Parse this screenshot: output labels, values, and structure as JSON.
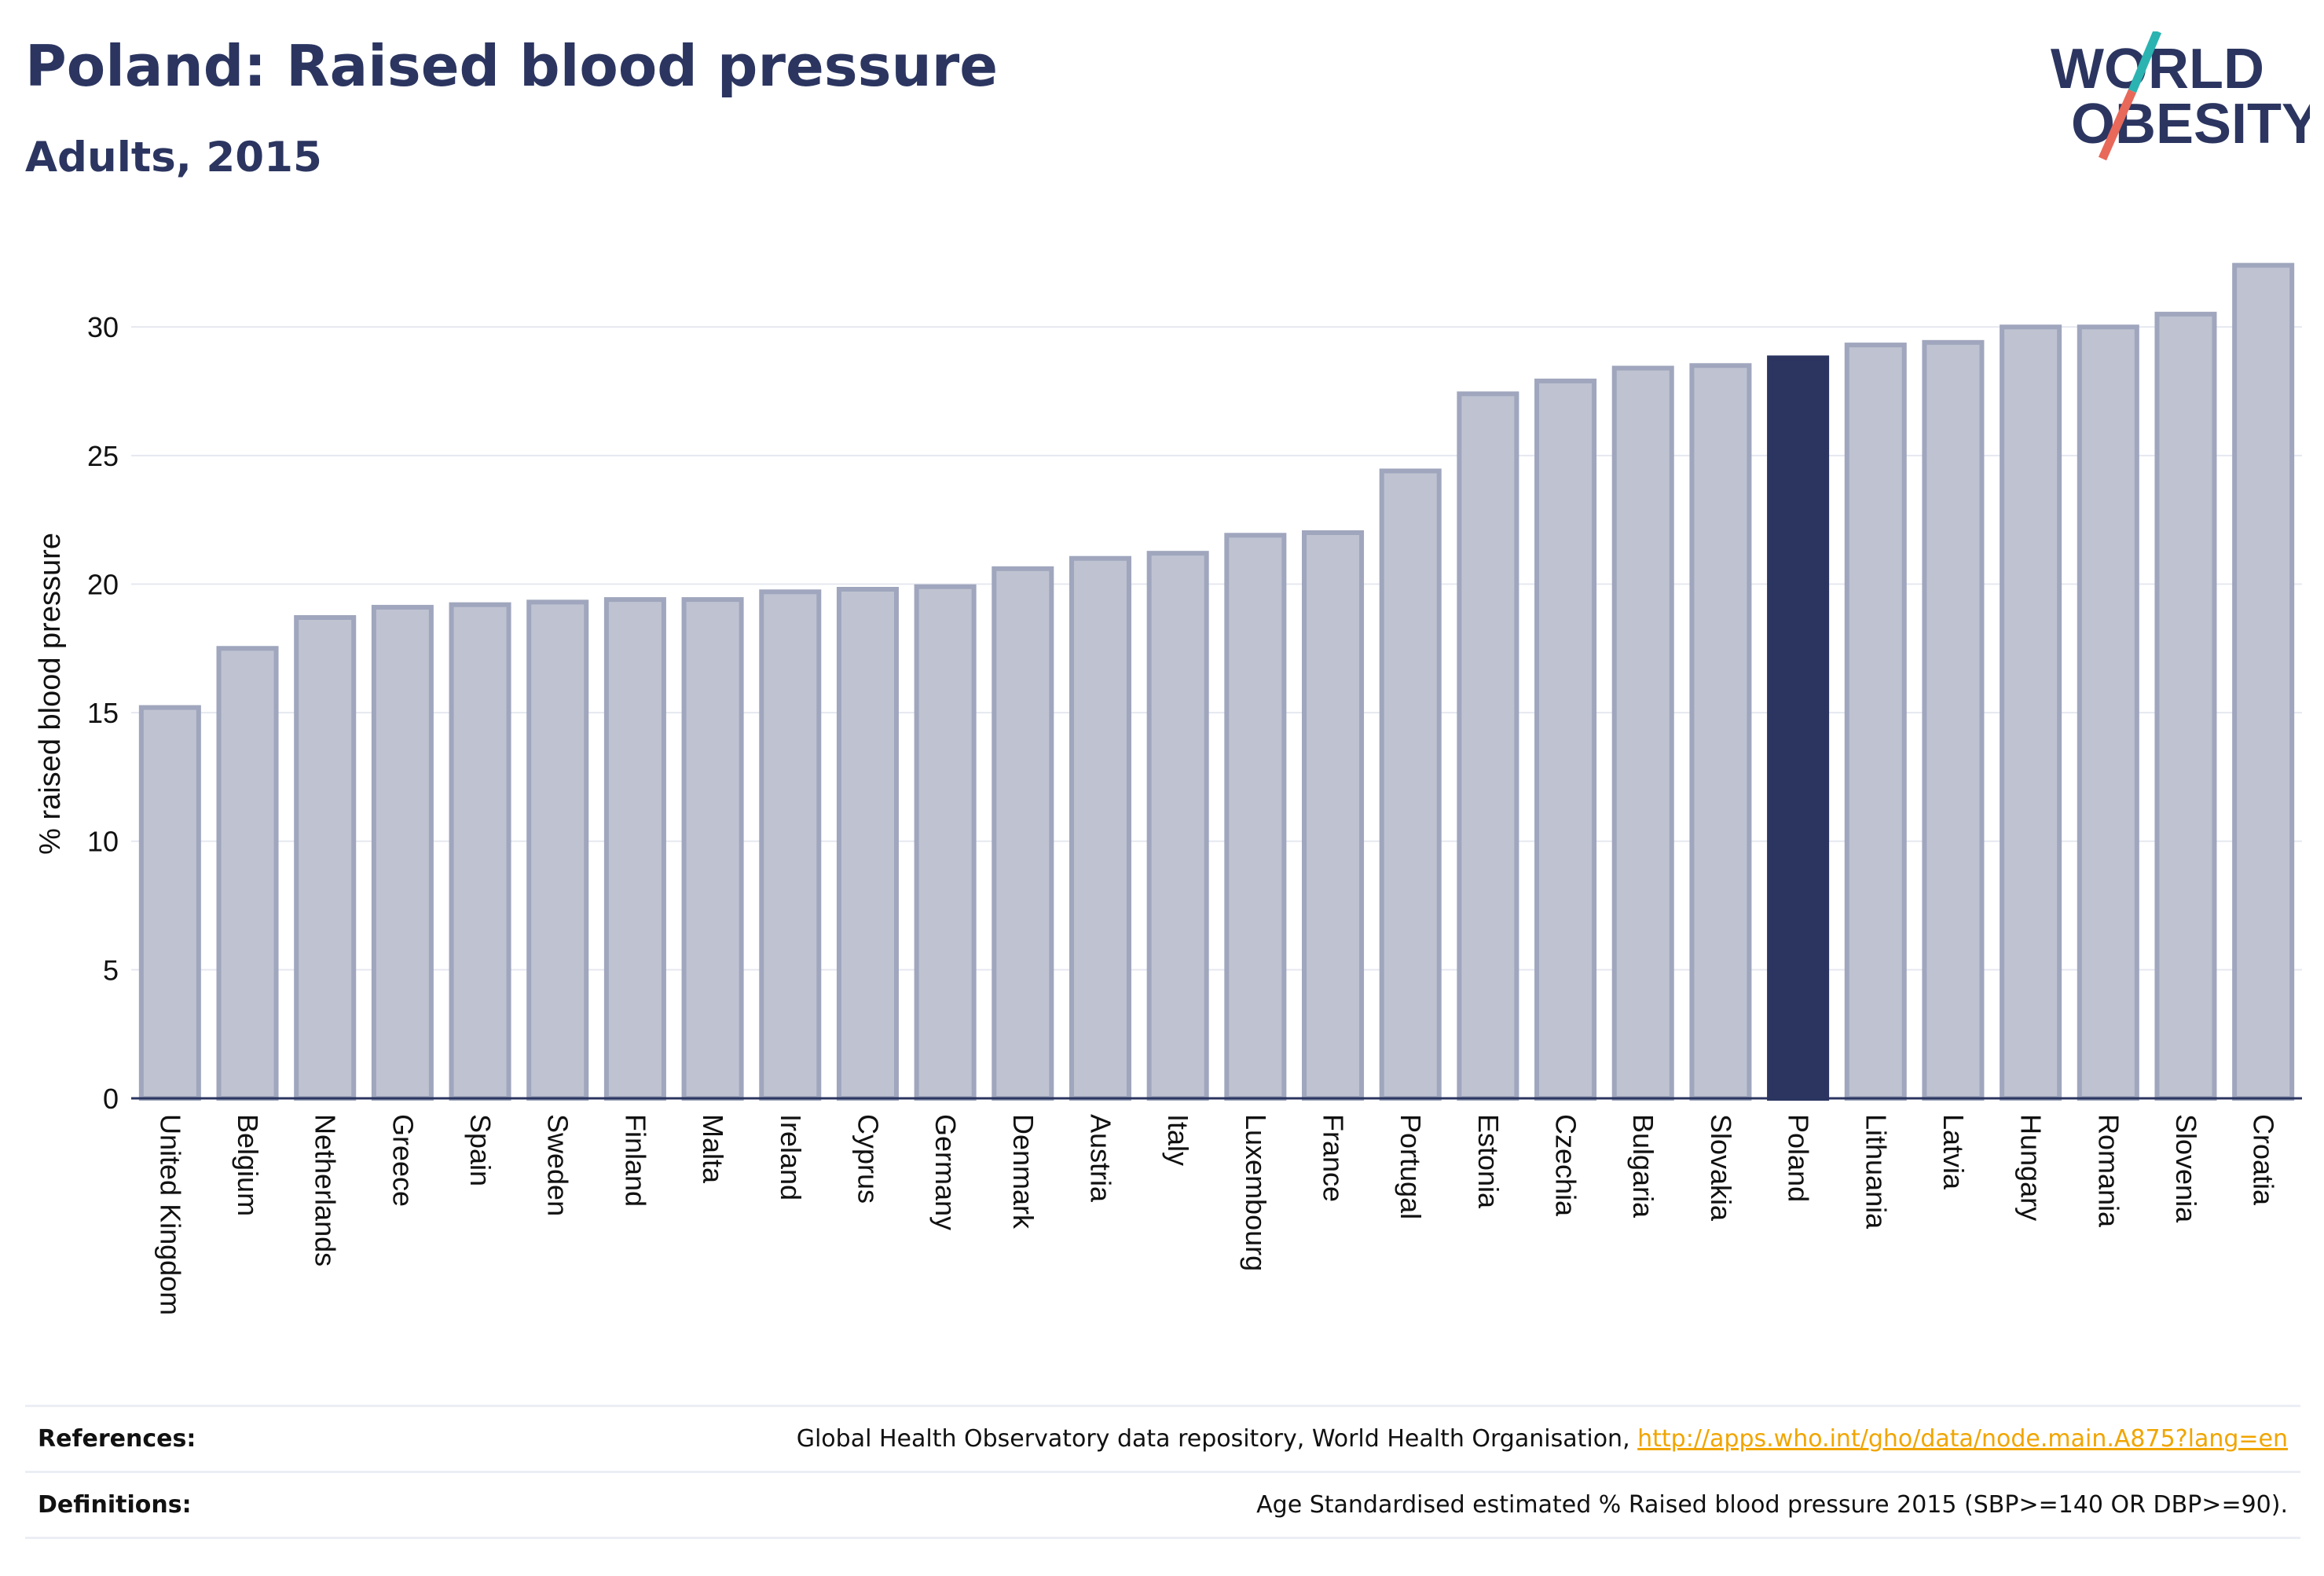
{
  "header": {
    "title": "Poland: Raised blood pressure",
    "subtitle": "Adults, 2015"
  },
  "logo": {
    "line1": "WORLD",
    "line2": "OBESITY",
    "text_color": "#2b3560",
    "slash_teal": "#2ab3b1",
    "slash_coral": "#e8685a"
  },
  "chart_data": {
    "type": "bar",
    "categories": [
      "United Kingdom",
      "Belgium",
      "Netherlands",
      "Greece",
      "Spain",
      "Sweden",
      "Finland",
      "Malta",
      "Ireland",
      "Cyprus",
      "Germany",
      "Denmark",
      "Austria",
      "Italy",
      "Luxembourg",
      "France",
      "Portugal",
      "Estonia",
      "Czechia",
      "Bulgaria",
      "Slovakia",
      "Poland",
      "Lithuania",
      "Latvia",
      "Hungary",
      "Romania",
      "Slovenia",
      "Croatia"
    ],
    "values": [
      15.2,
      17.5,
      18.7,
      19.1,
      19.2,
      19.3,
      19.4,
      19.4,
      19.7,
      19.8,
      19.9,
      20.6,
      21.0,
      21.2,
      21.9,
      22.0,
      24.4,
      27.4,
      27.9,
      28.4,
      28.5,
      28.8,
      29.3,
      29.4,
      30.0,
      30.0,
      30.5,
      32.4
    ],
    "highlight": "Poland",
    "ylabel": "% raised blood pressure",
    "xlabel": "",
    "ylim": [
      0,
      33
    ],
    "yticks": [
      0,
      5,
      10,
      15,
      20,
      25,
      30
    ],
    "grid": true,
    "colors": {
      "bar_fill": "#bfc3d1",
      "bar_stroke": "#9fa6bd",
      "highlight_fill": "#2b3560",
      "gridline": "#e6e8f0",
      "axis_line": "#2b3560",
      "text": "#111111"
    }
  },
  "footer": {
    "references_label": "References:",
    "references_text": "Global Health Observatory data repository, World Health Organisation, ",
    "references_link": "http://apps.who.int/gho/data/node.main.A875?lang=en",
    "definitions_label": "Definitions:",
    "definitions_text": "Age Standardised estimated % Raised blood pressure 2015 (SBP>=140 OR DBP>=90)."
  }
}
